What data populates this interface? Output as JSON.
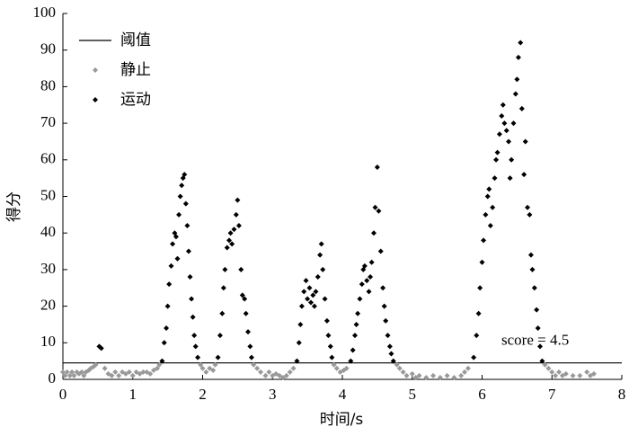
{
  "chart_data": {
    "type": "scatter",
    "x_label": "时间/s",
    "y_label": "得分",
    "xlim": [
      0,
      8
    ],
    "xticks": [
      0,
      1,
      2,
      3,
      4,
      5,
      6,
      7,
      8
    ],
    "ylim": [
      0,
      100
    ],
    "yticks": [
      0,
      10,
      20,
      30,
      40,
      50,
      60,
      70,
      80,
      90,
      100
    ],
    "threshold": {
      "name": "阈值",
      "value": 4.5,
      "color": "#000000",
      "label": "score = 4.5"
    },
    "legend": "upper left",
    "series": [
      {
        "name": "静止",
        "color": "#999999",
        "x": [
          0,
          0.03,
          0.06,
          0.1,
          0.13,
          0.16,
          0.2,
          0.23,
          0.27,
          0.3,
          0.33,
          0.37,
          0.4,
          0.44,
          0.47,
          0.6,
          0.65,
          0.7,
          0.75,
          0.8,
          0.85,
          0.9,
          0.95,
          1.0,
          1.05,
          1.1,
          1.15,
          1.2,
          1.25,
          1.3,
          1.35,
          1.38,
          1.97,
          2.0,
          2.05,
          2.1,
          2.15,
          2.18,
          2.73,
          2.78,
          2.83,
          2.9,
          2.95,
          3.0,
          3.05,
          3.1,
          3.15,
          3.2,
          3.25,
          3.3,
          3.88,
          3.92,
          3.97,
          4.02,
          4.06,
          4.78,
          4.82,
          4.87,
          4.92,
          5.0,
          5.05,
          5.1,
          5.2,
          5.3,
          5.4,
          5.5,
          5.6,
          5.7,
          5.75,
          5.8,
          6.9,
          6.95,
          7.0,
          7.05,
          7.1,
          7.15,
          7.2,
          7.3,
          7.4,
          7.5,
          7.55,
          7.6
        ],
        "values": [
          2,
          1,
          2,
          1,
          2,
          1,
          2,
          1.5,
          2,
          1,
          2,
          2.5,
          3,
          3.5,
          4,
          3,
          1.5,
          1,
          2,
          1,
          2,
          1.5,
          2,
          1,
          2,
          1.5,
          2,
          2,
          1.5,
          2.5,
          3,
          4,
          4,
          3,
          2,
          3,
          2.5,
          4,
          4,
          3,
          2,
          1,
          2,
          1,
          1.5,
          1,
          0.5,
          1,
          2,
          3,
          4,
          3,
          2,
          2.5,
          3,
          4,
          3,
          2,
          1,
          1.5,
          0.5,
          1,
          0.5,
          1,
          0.5,
          1,
          0.5,
          1,
          2,
          3,
          4,
          3,
          2,
          1,
          2,
          1,
          1.5,
          1,
          1,
          2,
          1,
          1.5
        ]
      },
      {
        "name": "运动",
        "color": "#000000",
        "x": [
          0.52,
          0.55,
          1.42,
          1.45,
          1.48,
          1.5,
          1.52,
          1.55,
          1.57,
          1.6,
          1.62,
          1.64,
          1.66,
          1.68,
          1.7,
          1.72,
          1.74,
          1.76,
          1.78,
          1.8,
          1.82,
          1.84,
          1.86,
          1.88,
          1.9,
          1.93,
          2.22,
          2.25,
          2.28,
          2.3,
          2.32,
          2.35,
          2.38,
          2.4,
          2.42,
          2.45,
          2.48,
          2.5,
          2.52,
          2.55,
          2.57,
          2.6,
          2.62,
          2.65,
          2.68,
          2.7,
          3.35,
          3.38,
          3.4,
          3.42,
          3.45,
          3.48,
          3.5,
          3.53,
          3.55,
          3.58,
          3.6,
          3.62,
          3.65,
          3.68,
          3.7,
          3.72,
          3.75,
          3.78,
          3.8,
          3.83,
          3.85,
          4.12,
          4.15,
          4.18,
          4.2,
          4.22,
          4.25,
          4.28,
          4.3,
          4.32,
          4.35,
          4.38,
          4.4,
          4.42,
          4.45,
          4.47,
          4.5,
          4.52,
          4.55,
          4.58,
          4.6,
          4.62,
          4.65,
          4.68,
          4.7,
          4.73,
          5.88,
          5.92,
          5.95,
          5.97,
          6.0,
          6.02,
          6.05,
          6.08,
          6.1,
          6.12,
          6.15,
          6.18,
          6.2,
          6.22,
          6.25,
          6.28,
          6.3,
          6.32,
          6.35,
          6.38,
          6.4,
          6.42,
          6.45,
          6.48,
          6.5,
          6.52,
          6.55,
          6.57,
          6.6,
          6.62,
          6.65,
          6.68,
          6.7,
          6.72,
          6.75,
          6.78,
          6.8,
          6.83,
          6.86
        ],
        "values": [
          9,
          8.5,
          5,
          10,
          14,
          20,
          26,
          31,
          37,
          40,
          39,
          33,
          45,
          50,
          53,
          55,
          56,
          48,
          42,
          35,
          28,
          22,
          17,
          12,
          9,
          6,
          6,
          12,
          18,
          25,
          30,
          36,
          38,
          40,
          37,
          41,
          45,
          49,
          42,
          30,
          23,
          22,
          18,
          13,
          9,
          6,
          5,
          10,
          15,
          20,
          24,
          27,
          22,
          25,
          21,
          23,
          20,
          24,
          28,
          34,
          37,
          30,
          22,
          16,
          12,
          9,
          6,
          5,
          8,
          12,
          15,
          18,
          22,
          26,
          30,
          31,
          27,
          24,
          28,
          32,
          40,
          47,
          58,
          46,
          35,
          25,
          20,
          16,
          12,
          9,
          7,
          5,
          6,
          12,
          18,
          25,
          32,
          38,
          45,
          50,
          52,
          42,
          47,
          55,
          60,
          62,
          67,
          72,
          75,
          70,
          68,
          65,
          55,
          60,
          70,
          78,
          82,
          88,
          92,
          74,
          56,
          65,
          47,
          45,
          34,
          30,
          25,
          19,
          14,
          9,
          5
        ]
      }
    ]
  }
}
